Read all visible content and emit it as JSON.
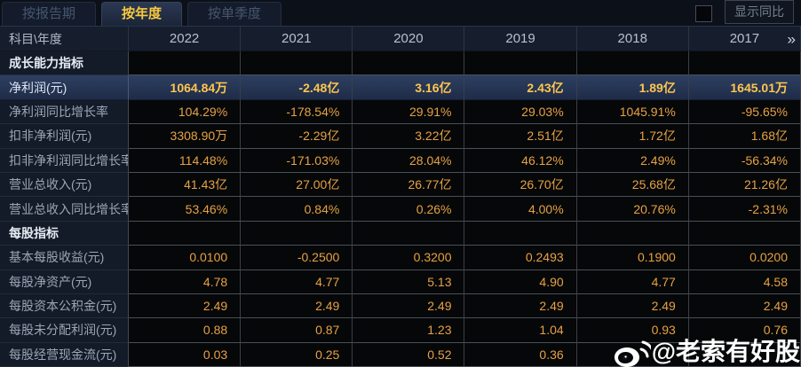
{
  "tabs": [
    {
      "label": "按报告期",
      "active": false
    },
    {
      "label": "按年度",
      "active": true
    },
    {
      "label": "按单季度",
      "active": false
    }
  ],
  "controls": {
    "show_yoy_label": "显示同比",
    "checkbox_checked": false
  },
  "table": {
    "corner_header": "科目\\年度",
    "year_columns": [
      "2022",
      "2021",
      "2020",
      "2019",
      "2018",
      "2017"
    ],
    "more_icon": "»",
    "rows": [
      {
        "type": "section",
        "label": "成长能力指标",
        "values": [
          "",
          "",
          "",
          "",
          "",
          ""
        ]
      },
      {
        "type": "data",
        "highlight": true,
        "label": "净利润(元)",
        "values": [
          "1064.84万",
          "-2.48亿",
          "3.16亿",
          "2.43亿",
          "1.89亿",
          "1645.01万"
        ]
      },
      {
        "type": "data",
        "label": "净利润同比增长率",
        "values": [
          "104.29%",
          "-178.54%",
          "29.91%",
          "29.03%",
          "1045.91%",
          "-95.65%"
        ]
      },
      {
        "type": "data",
        "label": "扣非净利润(元)",
        "values": [
          "3308.90万",
          "-2.29亿",
          "3.22亿",
          "2.51亿",
          "1.72亿",
          "1.68亿"
        ]
      },
      {
        "type": "data",
        "label": "扣非净利润同比增长率",
        "values": [
          "114.48%",
          "-171.03%",
          "28.04%",
          "46.12%",
          "2.49%",
          "-56.34%"
        ]
      },
      {
        "type": "data",
        "label": "营业总收入(元)",
        "values": [
          "41.43亿",
          "27.00亿",
          "26.77亿",
          "26.70亿",
          "25.68亿",
          "21.26亿"
        ]
      },
      {
        "type": "data",
        "label": "营业总收入同比增长率",
        "values": [
          "53.46%",
          "0.84%",
          "0.26%",
          "4.00%",
          "20.76%",
          "-2.31%"
        ]
      },
      {
        "type": "section",
        "label": "每股指标",
        "values": [
          "",
          "",
          "",
          "",
          "",
          ""
        ]
      },
      {
        "type": "data",
        "label": "基本每股收益(元)",
        "values": [
          "0.0100",
          "-0.2500",
          "0.3200",
          "0.2493",
          "0.1900",
          "0.0200"
        ]
      },
      {
        "type": "data",
        "label": "每股净资产(元)",
        "values": [
          "4.78",
          "4.77",
          "5.13",
          "4.90",
          "4.77",
          "4.58"
        ]
      },
      {
        "type": "data",
        "label": "每股资本公积金(元)",
        "values": [
          "2.49",
          "2.49",
          "2.49",
          "2.49",
          "2.49",
          "2.49"
        ]
      },
      {
        "type": "data",
        "label": "每股未分配利润(元)",
        "values": [
          "0.88",
          "0.87",
          "1.23",
          "1.04",
          "0.93",
          "0.76"
        ]
      },
      {
        "type": "data",
        "label": "每股经营现金流(元)",
        "values": [
          "0.03",
          "0.25",
          "0.52",
          "0.36",
          "",
          ""
        ]
      }
    ]
  },
  "watermark": {
    "icon": "weibo-icon",
    "handle": "@老索有好股"
  },
  "colors": {
    "accent_gold": "#f7c93f",
    "value_orange": "#e6a244",
    "highlight_value_gold": "#ffc64f",
    "highlight_row_bg": "#26375a",
    "page_bg": "#0c1019",
    "value_cell_bg": "#060708",
    "label_cell_bg": "#131a28"
  }
}
